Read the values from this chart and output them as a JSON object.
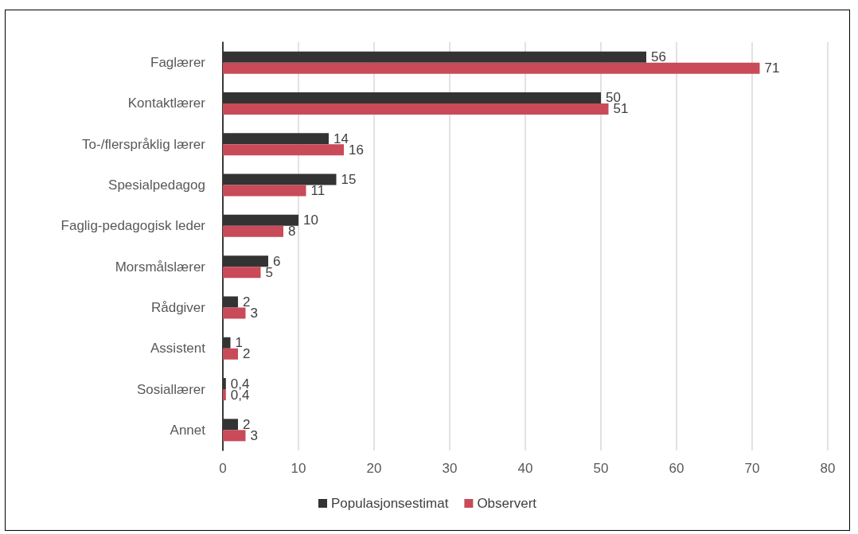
{
  "chart_data": {
    "type": "bar",
    "orientation": "horizontal",
    "categories": [
      "Faglærer",
      "Kontaktlærer",
      "To-/flerspråklig lærer",
      "Spesialpedagog",
      "Faglig-pedagogisk leder",
      "Morsmålslærer",
      "Rådgiver",
      "Assistent",
      "Sosiallærer",
      "Annet"
    ],
    "series": [
      {
        "name": "Populasjonsestimat",
        "color": "#333333",
        "values": [
          56,
          50,
          14,
          15,
          10,
          6,
          2,
          1,
          0.4,
          2
        ],
        "value_labels": [
          "56",
          "50",
          "14",
          "15",
          "10",
          "6",
          "2",
          "1",
          "0,4",
          "2"
        ]
      },
      {
        "name": "Observert",
        "color": "#c94a58",
        "values": [
          71,
          51,
          16,
          11,
          8,
          5,
          3,
          2,
          0.4,
          3
        ],
        "value_labels": [
          "71",
          "51",
          "16",
          "11",
          "8",
          "5",
          "3",
          "2",
          "0,4",
          "3"
        ]
      }
    ],
    "xlim": [
      0,
      80
    ],
    "xticks": [
      0,
      10,
      20,
      30,
      40,
      50,
      60,
      70,
      80
    ],
    "grid": "x",
    "legend": "bottom"
  }
}
